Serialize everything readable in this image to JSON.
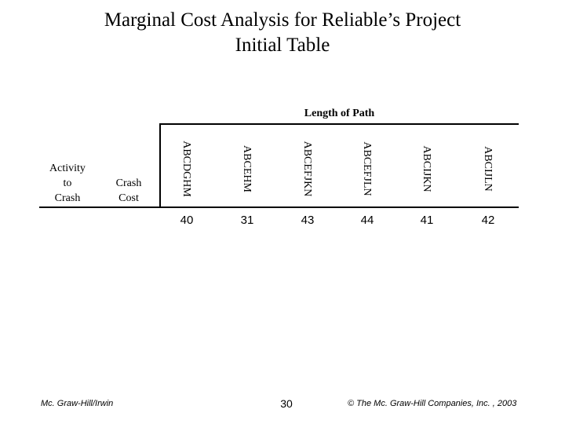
{
  "title": {
    "line1": "Marginal Cost Analysis for Reliable’s Project",
    "line2": "Initial Table"
  },
  "table": {
    "group_header": "Length of Path",
    "row_headers": {
      "activity_line1": "Activity",
      "activity_line2": "to",
      "activity_line3": "Crash",
      "crash_cost_line1": "Crash",
      "crash_cost_line2": "Cost"
    },
    "paths": [
      {
        "name": "ABCDGHM",
        "length": "40"
      },
      {
        "name": "ABCEHM",
        "length": "31"
      },
      {
        "name": "ABCEFJKN",
        "length": "43"
      },
      {
        "name": "ABCEFJLN",
        "length": "44"
      },
      {
        "name": "ABCIJKN",
        "length": "41"
      },
      {
        "name": "ABCIJLN",
        "length": "42"
      }
    ]
  },
  "footer": {
    "publisher": "Mc. Graw-Hill/Irwin",
    "page_number": "30",
    "copyright": "© The Mc. Graw-Hill Companies, Inc. , 2003"
  }
}
